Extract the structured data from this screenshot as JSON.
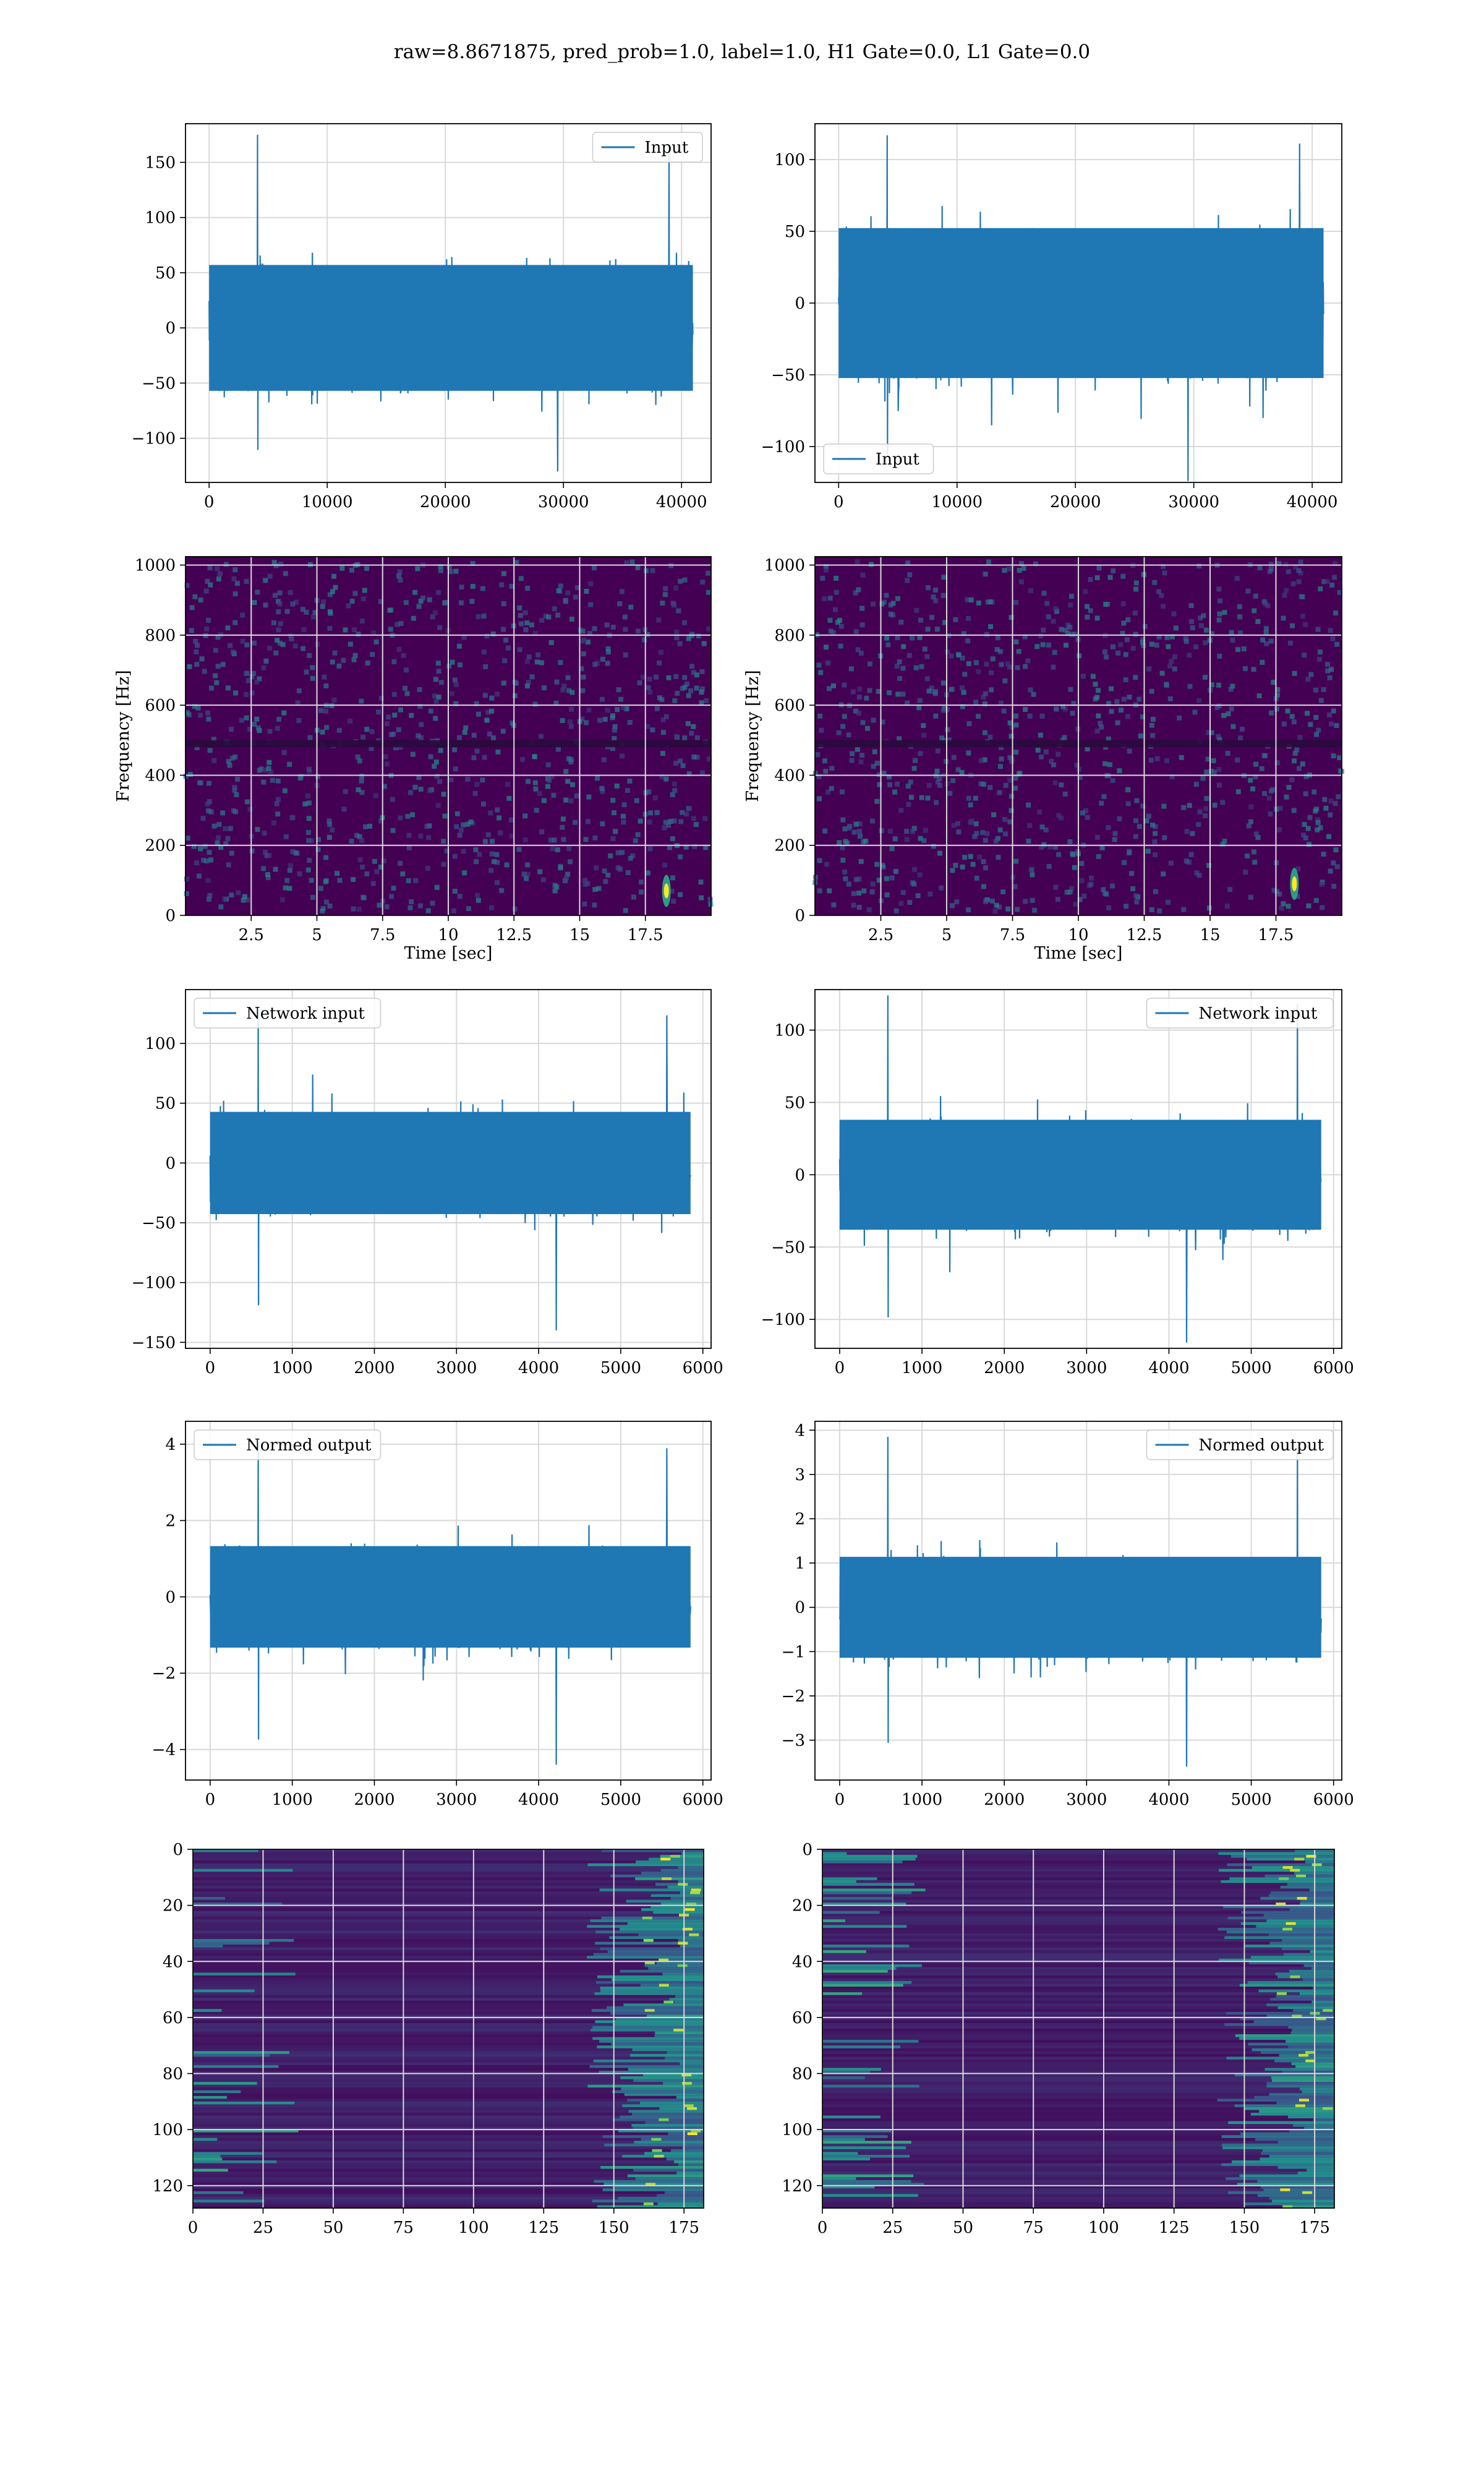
{
  "figure": {
    "title": "raw=8.8671875, pred_prob=1.0, label=1.0, H1 Gate=0.0, L1 Gate=0.0"
  },
  "colors": {
    "line": "#1f77b4",
    "grid": "#d9d9d9",
    "viridis_low": "#440154",
    "viridis_mid": "#21918c",
    "viridis_high": "#fde725"
  },
  "chart_data": [
    {
      "id": "input-h1",
      "type": "line",
      "column": "left",
      "legend": {
        "label": "Input",
        "placement": "upper right"
      },
      "xlim": [
        -2000,
        42500
      ],
      "ylim": [
        -140,
        185
      ],
      "xticks": [
        0,
        10000,
        20000,
        30000,
        40000
      ],
      "yticks": [
        -100,
        -50,
        0,
        50,
        100,
        150
      ],
      "series": [
        {
          "x_range": [
            0,
            40960
          ],
          "typical_amplitude": 60,
          "peak_max": 175,
          "peak_min": -130
        }
      ]
    },
    {
      "id": "input-l1",
      "type": "line",
      "column": "right",
      "legend": {
        "label": "Input",
        "placement": "lower left"
      },
      "xlim": [
        -2000,
        42500
      ],
      "ylim": [
        -125,
        125
      ],
      "xticks": [
        0,
        10000,
        20000,
        30000,
        40000
      ],
      "yticks": [
        -100,
        -50,
        0,
        50,
        100
      ],
      "series": [
        {
          "x_range": [
            0,
            40960
          ],
          "typical_amplitude": 55,
          "peak_max": 117,
          "peak_min": -124
        }
      ]
    },
    {
      "id": "spectrogram-h1",
      "type": "heatmap",
      "column": "left",
      "xlabel": "Time [sec]",
      "ylabel": "Frequency [Hz]",
      "xlim": [
        0,
        20
      ],
      "ylim": [
        0,
        1024
      ],
      "xticks": [
        2.5,
        5.0,
        7.5,
        10.0,
        12.5,
        15.0,
        17.5
      ],
      "yticks": [
        0,
        200,
        400,
        600,
        800,
        1000
      ],
      "dark_band_hz": [
        480,
        500
      ],
      "hotspot": {
        "time": 18.3,
        "freq": 70
      }
    },
    {
      "id": "spectrogram-l1",
      "type": "heatmap",
      "column": "right",
      "xlabel": "Time [sec]",
      "ylabel": "Frequency [Hz]",
      "xlim": [
        0,
        20
      ],
      "ylim": [
        0,
        1024
      ],
      "xticks": [
        2.5,
        5.0,
        7.5,
        10.0,
        12.5,
        15.0,
        17.5
      ],
      "yticks": [
        0,
        200,
        400,
        600,
        800,
        1000
      ],
      "dark_band_hz": [
        480,
        500
      ],
      "hotspot": {
        "time": 18.2,
        "freq": 90
      }
    },
    {
      "id": "network-input-h1",
      "type": "line",
      "column": "left",
      "legend": {
        "label": "Network input",
        "placement": "upper left"
      },
      "xlim": [
        -300,
        6100
      ],
      "ylim": [
        -155,
        145
      ],
      "xticks": [
        0,
        1000,
        2000,
        3000,
        4000,
        5000,
        6000
      ],
      "yticks": [
        -150,
        -100,
        -50,
        0,
        50,
        100
      ],
      "series": [
        {
          "x_range": [
            0,
            5850
          ],
          "typical_amplitude": 45,
          "peak_max": 130,
          "peak_min": -140
        }
      ]
    },
    {
      "id": "network-input-l1",
      "type": "line",
      "column": "right",
      "legend": {
        "label": "Network input",
        "placement": "upper right"
      },
      "xlim": [
        -300,
        6100
      ],
      "ylim": [
        -120,
        128
      ],
      "xticks": [
        0,
        1000,
        2000,
        3000,
        4000,
        5000,
        6000
      ],
      "yticks": [
        -100,
        -50,
        0,
        50,
        100
      ],
      "series": [
        {
          "x_range": [
            0,
            5850
          ],
          "typical_amplitude": 40,
          "peak_max": 124,
          "peak_min": -116
        }
      ]
    },
    {
      "id": "normed-output-h1",
      "type": "line",
      "column": "left",
      "legend": {
        "label": "Normed output",
        "placement": "upper left"
      },
      "xlim": [
        -300,
        6100
      ],
      "ylim": [
        -4.8,
        4.6
      ],
      "xticks": [
        0,
        1000,
        2000,
        3000,
        4000,
        5000,
        6000
      ],
      "yticks": [
        -4,
        -2,
        0,
        2,
        4
      ],
      "series": [
        {
          "x_range": [
            0,
            5850
          ],
          "typical_amplitude": 1.4,
          "peak_max": 4.1,
          "peak_min": -4.4
        }
      ]
    },
    {
      "id": "normed-output-l1",
      "type": "line",
      "column": "right",
      "legend": {
        "label": "Normed output",
        "placement": "upper right"
      },
      "xlim": [
        -300,
        6100
      ],
      "ylim": [
        -3.9,
        4.2
      ],
      "xticks": [
        0,
        1000,
        2000,
        3000,
        4000,
        5000,
        6000
      ],
      "yticks": [
        -3,
        -2,
        -1,
        0,
        1,
        2,
        3,
        4
      ],
      "series": [
        {
          "x_range": [
            0,
            5850
          ],
          "typical_amplitude": 1.2,
          "peak_max": 3.85,
          "peak_min": -3.6
        }
      ]
    },
    {
      "id": "feature-map-h1",
      "type": "heatmap",
      "column": "left",
      "xlim": [
        0,
        182
      ],
      "ylim": [
        128,
        0
      ],
      "xticks": [
        0,
        25,
        50,
        75,
        100,
        125,
        150,
        175
      ],
      "yticks": [
        0,
        20,
        40,
        60,
        80,
        100,
        120
      ],
      "dims": [
        128,
        182
      ],
      "bright_edge": "right"
    },
    {
      "id": "feature-map-l1",
      "type": "heatmap",
      "column": "right",
      "xlim": [
        0,
        182
      ],
      "ylim": [
        128,
        0
      ],
      "xticks": [
        0,
        25,
        50,
        75,
        100,
        125,
        150,
        175
      ],
      "yticks": [
        0,
        20,
        40,
        60,
        80,
        100,
        120
      ],
      "dims": [
        128,
        182
      ],
      "bright_edge": "right"
    }
  ]
}
